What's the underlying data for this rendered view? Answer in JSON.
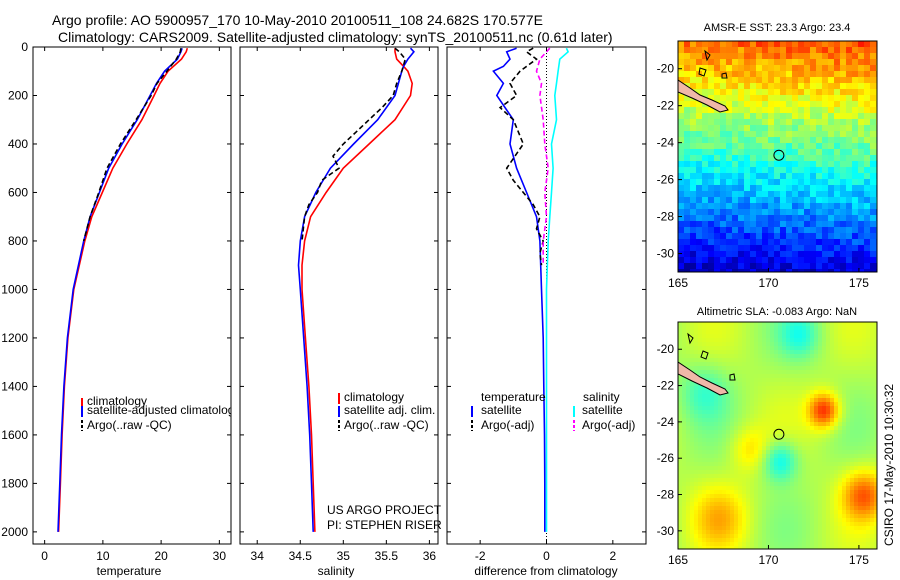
{
  "header": {
    "line1": "Argo profile: AO 5900957_170 10-May-2010 20100511_108 24.682S 170.577E",
    "line2": "Climatology: CARS2009. Satellite-adjusted climatology: synTS_20100511.nc (0.61d later)"
  },
  "credit": {
    "project": "US ARGO PROJECT",
    "pi": "PI: STEPHEN RISER",
    "stamp": "CSIRO 17-May-2010 10:30:32"
  },
  "colors": {
    "climatology": "#ff0000",
    "satellite": "#0000ff",
    "argo": "#000000",
    "salinity_satellite": "#00ffff",
    "salinity_argo": "#ff00ff"
  },
  "chart_data": [
    {
      "id": "temperature",
      "type": "line",
      "xlabel": "temperature",
      "ylabel": "",
      "xlim": [
        -2,
        32
      ],
      "ylim": [
        2050,
        0
      ],
      "xticks": [
        0,
        10,
        20,
        30
      ],
      "yticks": [
        0,
        200,
        400,
        600,
        800,
        1000,
        1200,
        1400,
        1600,
        1800,
        2000
      ],
      "legend": [
        "climatology",
        "satellite-adjusted climatology",
        "Argo(..raw -QC)"
      ],
      "series": [
        {
          "name": "climatology",
          "color": "#ff0000",
          "dash": "",
          "depth": [
            5,
            20,
            50,
            100,
            150,
            200,
            300,
            400,
            500,
            600,
            700,
            800,
            1000,
            1200,
            1400,
            1600,
            1800,
            2000
          ],
          "values": [
            24.5,
            24.3,
            23.5,
            21.2,
            19.8,
            18.8,
            16.7,
            14.1,
            11.7,
            9.9,
            8.1,
            6.9,
            5.0,
            4.0,
            3.4,
            3.0,
            2.7,
            2.4
          ]
        },
        {
          "name": "satellite-adjusted climatology",
          "color": "#0000ff",
          "dash": "",
          "depth": [
            5,
            20,
            50,
            100,
            150,
            200,
            300,
            400,
            500,
            600,
            700,
            800,
            1000,
            1200,
            1400,
            1600,
            1800,
            2000
          ],
          "values": [
            23.6,
            23.4,
            22.8,
            20.6,
            19.2,
            18.1,
            15.9,
            13.3,
            11.0,
            9.4,
            7.8,
            6.7,
            4.9,
            3.9,
            3.3,
            2.9,
            2.6,
            2.3
          ]
        },
        {
          "name": "Argo(..raw -QC)",
          "color": "#000000",
          "dash": "5,3",
          "depth": [
            5,
            20,
            50,
            100,
            150,
            200,
            250,
            300,
            400,
            500,
            600,
            700,
            800
          ],
          "values": [
            23.4,
            23.3,
            22.6,
            21.0,
            19.3,
            18.3,
            17.0,
            15.7,
            13.0,
            10.7,
            9.3,
            7.8,
            6.7
          ]
        }
      ]
    },
    {
      "id": "salinity",
      "type": "line",
      "xlabel": "salinity",
      "ylabel": "",
      "xlim": [
        33.8,
        36.1
      ],
      "ylim": [
        2050,
        0
      ],
      "xticks": [
        34,
        34.5,
        35,
        35.5,
        36
      ],
      "legend": [
        "climatology",
        "satellite adj. clim.",
        "Argo(..raw -QC)"
      ],
      "series": [
        {
          "name": "climatology",
          "color": "#ff0000",
          "dash": "",
          "depth": [
            5,
            20,
            50,
            80,
            100,
            150,
            200,
            300,
            400,
            500,
            600,
            700,
            800,
            900,
            1000,
            1200,
            1400,
            1600,
            1800,
            2000
          ],
          "values": [
            35.6,
            35.6,
            35.62,
            35.7,
            35.75,
            35.8,
            35.78,
            35.6,
            35.3,
            35.0,
            34.8,
            34.62,
            34.55,
            34.52,
            34.52,
            34.56,
            34.6,
            34.63,
            34.65,
            34.67
          ]
        },
        {
          "name": "satellite adj. clim.",
          "color": "#0000ff",
          "dash": "",
          "depth": [
            5,
            20,
            50,
            80,
            100,
            150,
            200,
            300,
            400,
            500,
            600,
            700,
            800,
            900,
            1000,
            1200,
            1400,
            1600,
            1800,
            2000
          ],
          "values": [
            35.78,
            35.82,
            35.75,
            35.7,
            35.68,
            35.64,
            35.6,
            35.4,
            35.12,
            34.85,
            34.68,
            34.55,
            34.5,
            34.48,
            34.5,
            34.54,
            34.58,
            34.61,
            34.63,
            34.65
          ]
        },
        {
          "name": "Argo(..raw -QC)",
          "color": "#000000",
          "dash": "5,3",
          "depth": [
            5,
            20,
            50,
            100,
            150,
            200,
            250,
            300,
            350,
            400,
            450,
            500,
            550,
            600,
            650,
            700,
            800
          ],
          "values": [
            35.6,
            35.65,
            35.72,
            35.68,
            35.62,
            35.58,
            35.45,
            35.3,
            35.15,
            35.0,
            34.88,
            34.95,
            34.75,
            34.7,
            34.6,
            34.55,
            34.52
          ]
        }
      ]
    },
    {
      "id": "difference",
      "type": "line",
      "xlabel": "difference from climatology",
      "ylabel": "",
      "xlim": [
        -3,
        3
      ],
      "ylim": [
        2050,
        0
      ],
      "xticks": [
        -2,
        0,
        2
      ],
      "legend_temperature": {
        "title": "temperature",
        "items": [
          "satellite",
          "Argo(-adj)"
        ]
      },
      "legend_salinity": {
        "title": "salinity",
        "items": [
          "satellite",
          "Argo(-adj)"
        ]
      },
      "series": [
        {
          "name": "temperature satellite",
          "color": "#0000ff",
          "dash": "",
          "depth": [
            5,
            20,
            50,
            80,
            100,
            150,
            200,
            300,
            400,
            500,
            600,
            700,
            800,
            1000,
            1200,
            1400,
            1600,
            1800,
            2000
          ],
          "values": [
            -0.9,
            -1.2,
            -1.1,
            -1.3,
            -1.6,
            -1.3,
            -1.5,
            -1.0,
            -1.1,
            -0.9,
            -0.6,
            -0.3,
            -0.2,
            -0.15,
            -0.1,
            -0.08,
            -0.06,
            -0.05,
            -0.05
          ]
        },
        {
          "name": "temperature Argo(-adj)",
          "color": "#000000",
          "dash": "5,3",
          "depth": [
            5,
            20,
            50,
            100,
            150,
            200,
            250,
            300,
            400,
            500,
            550,
            600,
            650,
            700,
            750,
            800,
            850,
            900
          ],
          "values": [
            -0.4,
            -0.6,
            -0.3,
            -0.8,
            -1.1,
            -0.9,
            -1.4,
            -1.0,
            -0.7,
            -1.2,
            -1.0,
            -0.7,
            -0.4,
            -0.2,
            -0.3,
            -0.1,
            -0.2,
            -0.15
          ]
        },
        {
          "name": "salinity satellite",
          "color": "#00ffff",
          "dash": "",
          "depth": [
            5,
            20,
            50,
            100,
            150,
            200,
            300,
            400,
            500,
            600,
            700,
            800,
            1000,
            1200,
            1400,
            1600,
            1800,
            2000
          ],
          "values": [
            0.6,
            0.65,
            0.4,
            0.35,
            0.3,
            0.25,
            0.3,
            0.15,
            0.2,
            0.15,
            0.1,
            0.05,
            0.0,
            0.0,
            0.0,
            0.0,
            0.0,
            0.0
          ]
        },
        {
          "name": "salinity Argo(-adj)",
          "color": "#ff00ff",
          "dash": "5,3",
          "depth": [
            5,
            20,
            50,
            100,
            150,
            200,
            300,
            400,
            500,
            600,
            700,
            800,
            900
          ],
          "values": [
            0.1,
            0.0,
            -0.2,
            -0.3,
            -0.15,
            -0.2,
            -0.1,
            -0.05,
            0.05,
            -0.05,
            0.0,
            -0.1,
            -0.1
          ]
        }
      ]
    },
    {
      "id": "sst_map",
      "type": "heatmap",
      "title": "AMSR-E SST: 23.3  Argo: 23.4",
      "xticks": [
        165,
        170,
        175
      ],
      "yticks": [
        -20,
        -22,
        -24,
        -26,
        -28,
        -30
      ],
      "xlim": [
        165,
        176
      ],
      "ylim": [
        -31,
        -18.5
      ],
      "argo_position": {
        "lon": 170.577,
        "lat": -24.682
      }
    },
    {
      "id": "sla_map",
      "type": "heatmap",
      "title": "Altimetric SLA: -0.083  Argo: NaN",
      "xticks": [
        165,
        170,
        175
      ],
      "yticks": [
        -20,
        -22,
        -24,
        -26,
        -28,
        -30
      ],
      "xlim": [
        165,
        176
      ],
      "ylim": [
        -31,
        -18.5
      ],
      "argo_position": {
        "lon": 170.577,
        "lat": -24.682
      }
    }
  ]
}
